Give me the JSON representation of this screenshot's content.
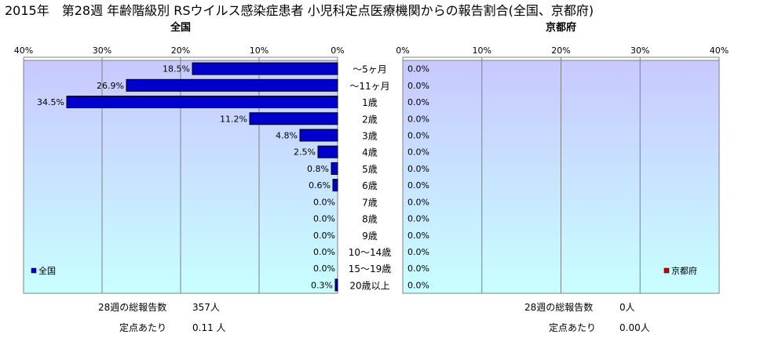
{
  "title": "2015年　第28週 年齢階級別 RSウイルス感染症患者 小児科定点医療機関からの報告割合(全国、京都府)",
  "panels": {
    "left": {
      "title": "全国",
      "legend": "全国",
      "report_label": "28週の総報告数",
      "report_value": "357人",
      "per_label": "定点あたり",
      "per_value": "0.11 人"
    },
    "right": {
      "title": "京都府",
      "legend": "京都府",
      "report_label": "28週の総報告数",
      "report_value": "0人",
      "per_label": "定点あたり",
      "per_value": "0.00人"
    }
  },
  "colors": {
    "left_bar": "#0000CC",
    "right_bar": "#CC0000",
    "plot_top": "#C8C8FF",
    "plot_bottom": "#C8FFFF"
  },
  "chart_data": [
    {
      "type": "bar",
      "orientation": "horizontal",
      "title": "全国",
      "categories": [
        "～5ヶ月",
        "～11ヶ月",
        "1歳",
        "2歳",
        "3歳",
        "4歳",
        "5歳",
        "6歳",
        "7歳",
        "8歳",
        "9歳",
        "10～14歳",
        "15～19歳",
        "20歳以上"
      ],
      "series": [
        {
          "name": "全国",
          "values": [
            18.5,
            26.9,
            34.5,
            11.2,
            4.8,
            2.5,
            0.8,
            0.6,
            0.0,
            0.0,
            0.0,
            0.0,
            0.0,
            0.3
          ],
          "labels": [
            "18.5%",
            "26.9%",
            "34.5%",
            "11.2%",
            "4.8%",
            "2.5%",
            "0.8%",
            "0.6%",
            "0.0%",
            "0.0%",
            "0.0%",
            "0.0%",
            "0.0%",
            "0.3%"
          ]
        }
      ],
      "xlim": [
        0,
        40
      ],
      "x_reversed": true,
      "xticks": [
        "40%",
        "30%",
        "20%",
        "10%",
        "0%"
      ],
      "grid": true,
      "legend_position": "bottom-left"
    },
    {
      "type": "bar",
      "orientation": "horizontal",
      "title": "京都府",
      "categories": [
        "～5ヶ月",
        "～11ヶ月",
        "1歳",
        "2歳",
        "3歳",
        "4歳",
        "5歳",
        "6歳",
        "7歳",
        "8歳",
        "9歳",
        "10～14歳",
        "15～19歳",
        "20歳以上"
      ],
      "series": [
        {
          "name": "京都府",
          "values": [
            0.0,
            0.0,
            0.0,
            0.0,
            0.0,
            0.0,
            0.0,
            0.0,
            0.0,
            0.0,
            0.0,
            0.0,
            0.0,
            0.0
          ],
          "labels": [
            "0.0%",
            "0.0%",
            "0.0%",
            "0.0%",
            "0.0%",
            "0.0%",
            "0.0%",
            "0.0%",
            "0.0%",
            "0.0%",
            "0.0%",
            "0.0%",
            "0.0%",
            "0.0%"
          ]
        }
      ],
      "xlim": [
        0,
        40
      ],
      "x_reversed": false,
      "xticks": [
        "0%",
        "10%",
        "20%",
        "30%",
        "40%"
      ],
      "grid": true,
      "legend_position": "bottom-right"
    }
  ]
}
